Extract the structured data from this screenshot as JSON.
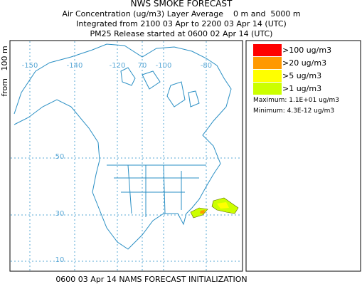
{
  "header": {
    "title": "NWS SMOKE FORECAST",
    "line1": "Air Concentration (ug/m3) Layer Average    0 m and  5000 m",
    "line2": "Integrated from 2100 03 Apr to 2200 03 Apr 14 (UTC)",
    "line3": "PM25 Release started at 0600 02 Apr 14 (UTC)"
  },
  "side_label": "from   100 m",
  "map": {
    "lon_labels": [
      "-150",
      "-140",
      "-120",
      "70",
      "-100",
      "-80"
    ],
    "lat_labels": [
      "50",
      "30",
      "10"
    ]
  },
  "legend": {
    "items": [
      {
        "label": ">100 ug/m3",
        "color": "#ff0000"
      },
      {
        "label": ">20 ug/m3",
        "color": "#ff9900"
      },
      {
        "label": ">5 ug/m3",
        "color": "#ffff00"
      },
      {
        "label": ">1 ug/m3",
        "color": "#ccff00"
      }
    ],
    "maximum": "Maximum: 1.1E+01 ug/m3",
    "minimum": "Minimum: 4.3E-12 ug/m3"
  },
  "footer": "0600 03 Apr 14 NAMS FORECAST INITIALIZATION"
}
